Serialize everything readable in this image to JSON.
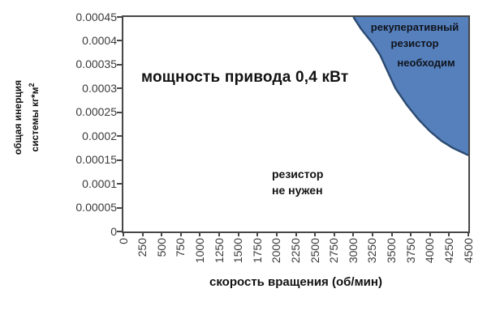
{
  "chart_data": {
    "type": "area",
    "title": "мощность привода 0,4 кВт",
    "xlabel": "скорость вращения (об/мин)",
    "ylabel": "общая инерция системы кг*м²",
    "ylabel_line1": "общая инерция",
    "ylabel_line2": "системы кг*м",
    "ylabel_sup": "2",
    "xlim": [
      0,
      4500
    ],
    "ylim": [
      0,
      0.00045
    ],
    "grid": false,
    "legend": "none",
    "x_ticks": [
      0,
      250,
      500,
      750,
      1000,
      1250,
      1500,
      1750,
      2000,
      2250,
      2500,
      2750,
      3000,
      3250,
      3500,
      3750,
      4000,
      4250,
      4500
    ],
    "y_ticks": [
      "0.00045",
      "0.0004",
      "0.00035",
      "0.0003",
      "0.00025",
      "0.0002",
      "0.00015",
      "0.0001",
      "0.00005",
      "0"
    ],
    "series": [
      {
        "name": "граница области: рекуперативный резистор необходим",
        "x": [
          3000,
          3100,
          3250,
          3350,
          3450,
          3550,
          3700,
          3850,
          4000,
          4150,
          4300,
          4500
        ],
        "y": [
          0.00045,
          0.000425,
          0.000395,
          0.00037,
          0.000335,
          0.0003,
          0.000265,
          0.000235,
          0.00021,
          0.00019,
          0.000175,
          0.00016
        ]
      }
    ],
    "region_labels": {
      "needed_line1": "рекуперативный",
      "needed_line2": "резистор",
      "needed_line3": "необходим",
      "not_needed_line1": "резистор",
      "not_needed_line2": "не нужен"
    },
    "colors": {
      "region_fill": "#5580BC",
      "region_stroke": "#2C4A70",
      "axis": "#474747",
      "text": "#111111"
    }
  }
}
